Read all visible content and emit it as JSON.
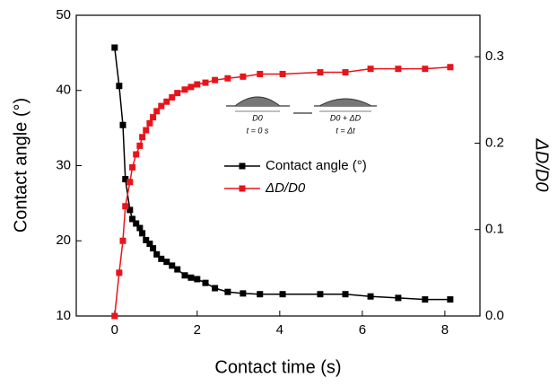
{
  "chart_data": {
    "type": "line",
    "xlabel": "Contact time (s)",
    "ylabel": "Contact angle (°)",
    "y2label": "ΔD/D0",
    "x": [
      0,
      0.11,
      0.2,
      0.26,
      0.37,
      0.43,
      0.52,
      0.61,
      0.67,
      0.76,
      0.85,
      0.93,
      1.02,
      1.13,
      1.26,
      1.39,
      1.52,
      1.7,
      1.85,
      2.0,
      2.2,
      2.43,
      2.74,
      3.11,
      3.52,
      4.07,
      4.98,
      5.59,
      6.2,
      6.87,
      7.52,
      8.13
    ],
    "series": [
      {
        "name": "Contact angle (°)",
        "color": "#000000",
        "axis": "y",
        "values": [
          45.7,
          40.6,
          35.4,
          28.2,
          24.1,
          22.9,
          22.3,
          21.7,
          21.0,
          20.1,
          19.6,
          19.0,
          18.2,
          17.6,
          17.2,
          16.7,
          16.2,
          15.4,
          15.1,
          14.9,
          14.4,
          13.7,
          13.2,
          13.0,
          12.9,
          12.9,
          12.9,
          12.9,
          12.6,
          12.4,
          12.2,
          12.2
        ]
      },
      {
        "name": "ΔD/D0",
        "color": "#e8141b",
        "axis": "y2",
        "values": [
          0,
          0.05,
          0.087,
          0.127,
          0.155,
          0.172,
          0.187,
          0.197,
          0.207,
          0.215,
          0.223,
          0.23,
          0.237,
          0.243,
          0.248,
          0.253,
          0.258,
          0.262,
          0.265,
          0.268,
          0.27,
          0.273,
          0.275,
          0.277,
          0.28,
          0.28,
          0.282,
          0.282,
          0.286,
          0.286,
          0.286,
          0.288
        ]
      }
    ],
    "xlim": [
      -0.93,
      8.85
    ],
    "xticks": [
      0,
      2,
      4,
      6,
      8
    ],
    "ylim": [
      10,
      50
    ],
    "yticks": [
      10,
      20,
      30,
      40,
      50
    ],
    "y2lim": [
      0,
      0.348
    ],
    "y2ticks": [
      {
        "value": 0,
        "label": "0.0"
      },
      {
        "value": 0.1,
        "label": "0.1"
      },
      {
        "value": 0.2,
        "label": "0.2"
      },
      {
        "value": 0.3,
        "label": "0.3"
      }
    ],
    "inset": {
      "labels": [
        "D0",
        "t = 0 s",
        "D0 + ΔD",
        "t = Δt"
      ]
    }
  }
}
